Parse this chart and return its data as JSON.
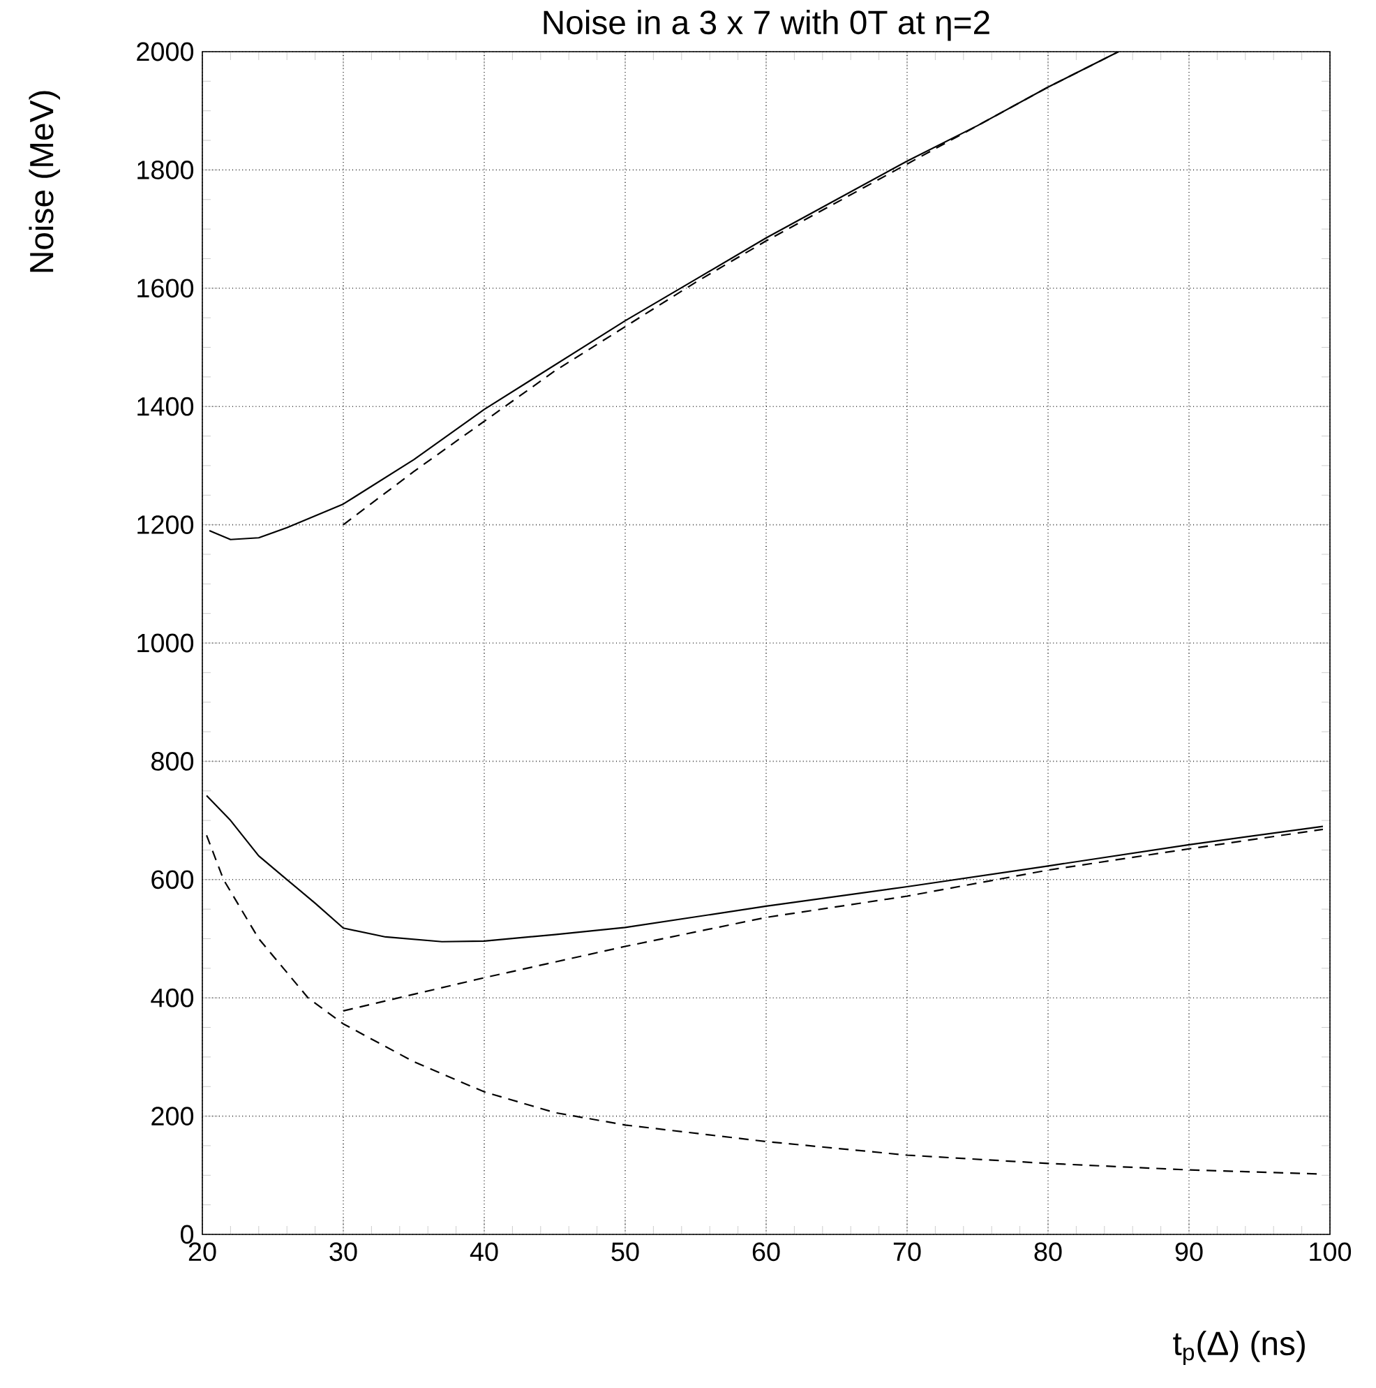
{
  "chart_data": {
    "type": "line",
    "title": "Noise in a 3 x 7 with 0T at η=2",
    "xlabel": "t$_{p}$(Δ) (ns)",
    "ylabel": "Noise (MeV)",
    "xlim": [
      20,
      100
    ],
    "ylim": [
      0,
      2000
    ],
    "xticks": [
      20,
      30,
      40,
      50,
      60,
      70,
      80,
      90,
      100
    ],
    "yticks": [
      0,
      200,
      400,
      600,
      800,
      1000,
      1200,
      1400,
      1600,
      1800,
      2000
    ],
    "grid": true,
    "series": [
      {
        "color": "#000000",
        "line_style": "solid",
        "x": [
          20.5,
          22,
          24,
          26,
          30,
          35,
          40,
          45,
          50,
          55,
          60,
          65,
          70,
          75,
          80,
          85
        ],
        "values": [
          1190,
          1175,
          1178,
          1195,
          1235,
          1310,
          1395,
          1470,
          1545,
          1615,
          1685,
          1750,
          1815,
          1875,
          1940,
          2000
        ]
      },
      {
        "color": "#000000",
        "line_style": "dashed",
        "x": [
          30,
          35,
          40,
          45,
          50,
          55,
          60,
          70,
          80,
          85
        ],
        "values": [
          1200,
          1290,
          1375,
          1460,
          1535,
          1610,
          1680,
          1810,
          1940,
          2000
        ]
      },
      {
        "color": "#000000",
        "line_style": "solid",
        "x": [
          20.3,
          22,
          24,
          26,
          28,
          30,
          33,
          37,
          40,
          45,
          50,
          60,
          70,
          80,
          90,
          99.5
        ],
        "values": [
          742,
          700,
          640,
          600,
          560,
          518,
          503,
          495,
          496,
          507,
          519,
          555,
          588,
          623,
          659,
          690
        ]
      },
      {
        "color": "#000000",
        "line_style": "dashed",
        "x": [
          30,
          40,
          50,
          60,
          70,
          80,
          90,
          99.5
        ],
        "values": [
          378,
          434,
          487,
          536,
          572,
          616,
          652,
          685
        ]
      },
      {
        "color": "#000000",
        "line_style": "dashed",
        "x": [
          20.3,
          21.5,
          24,
          27.5,
          30,
          35,
          40,
          45,
          50,
          60,
          70,
          80,
          90,
          99.5
        ],
        "values": [
          675,
          600,
          500,
          400,
          356,
          292,
          241,
          206,
          185,
          157,
          134,
          120,
          109,
          102
        ]
      }
    ]
  }
}
